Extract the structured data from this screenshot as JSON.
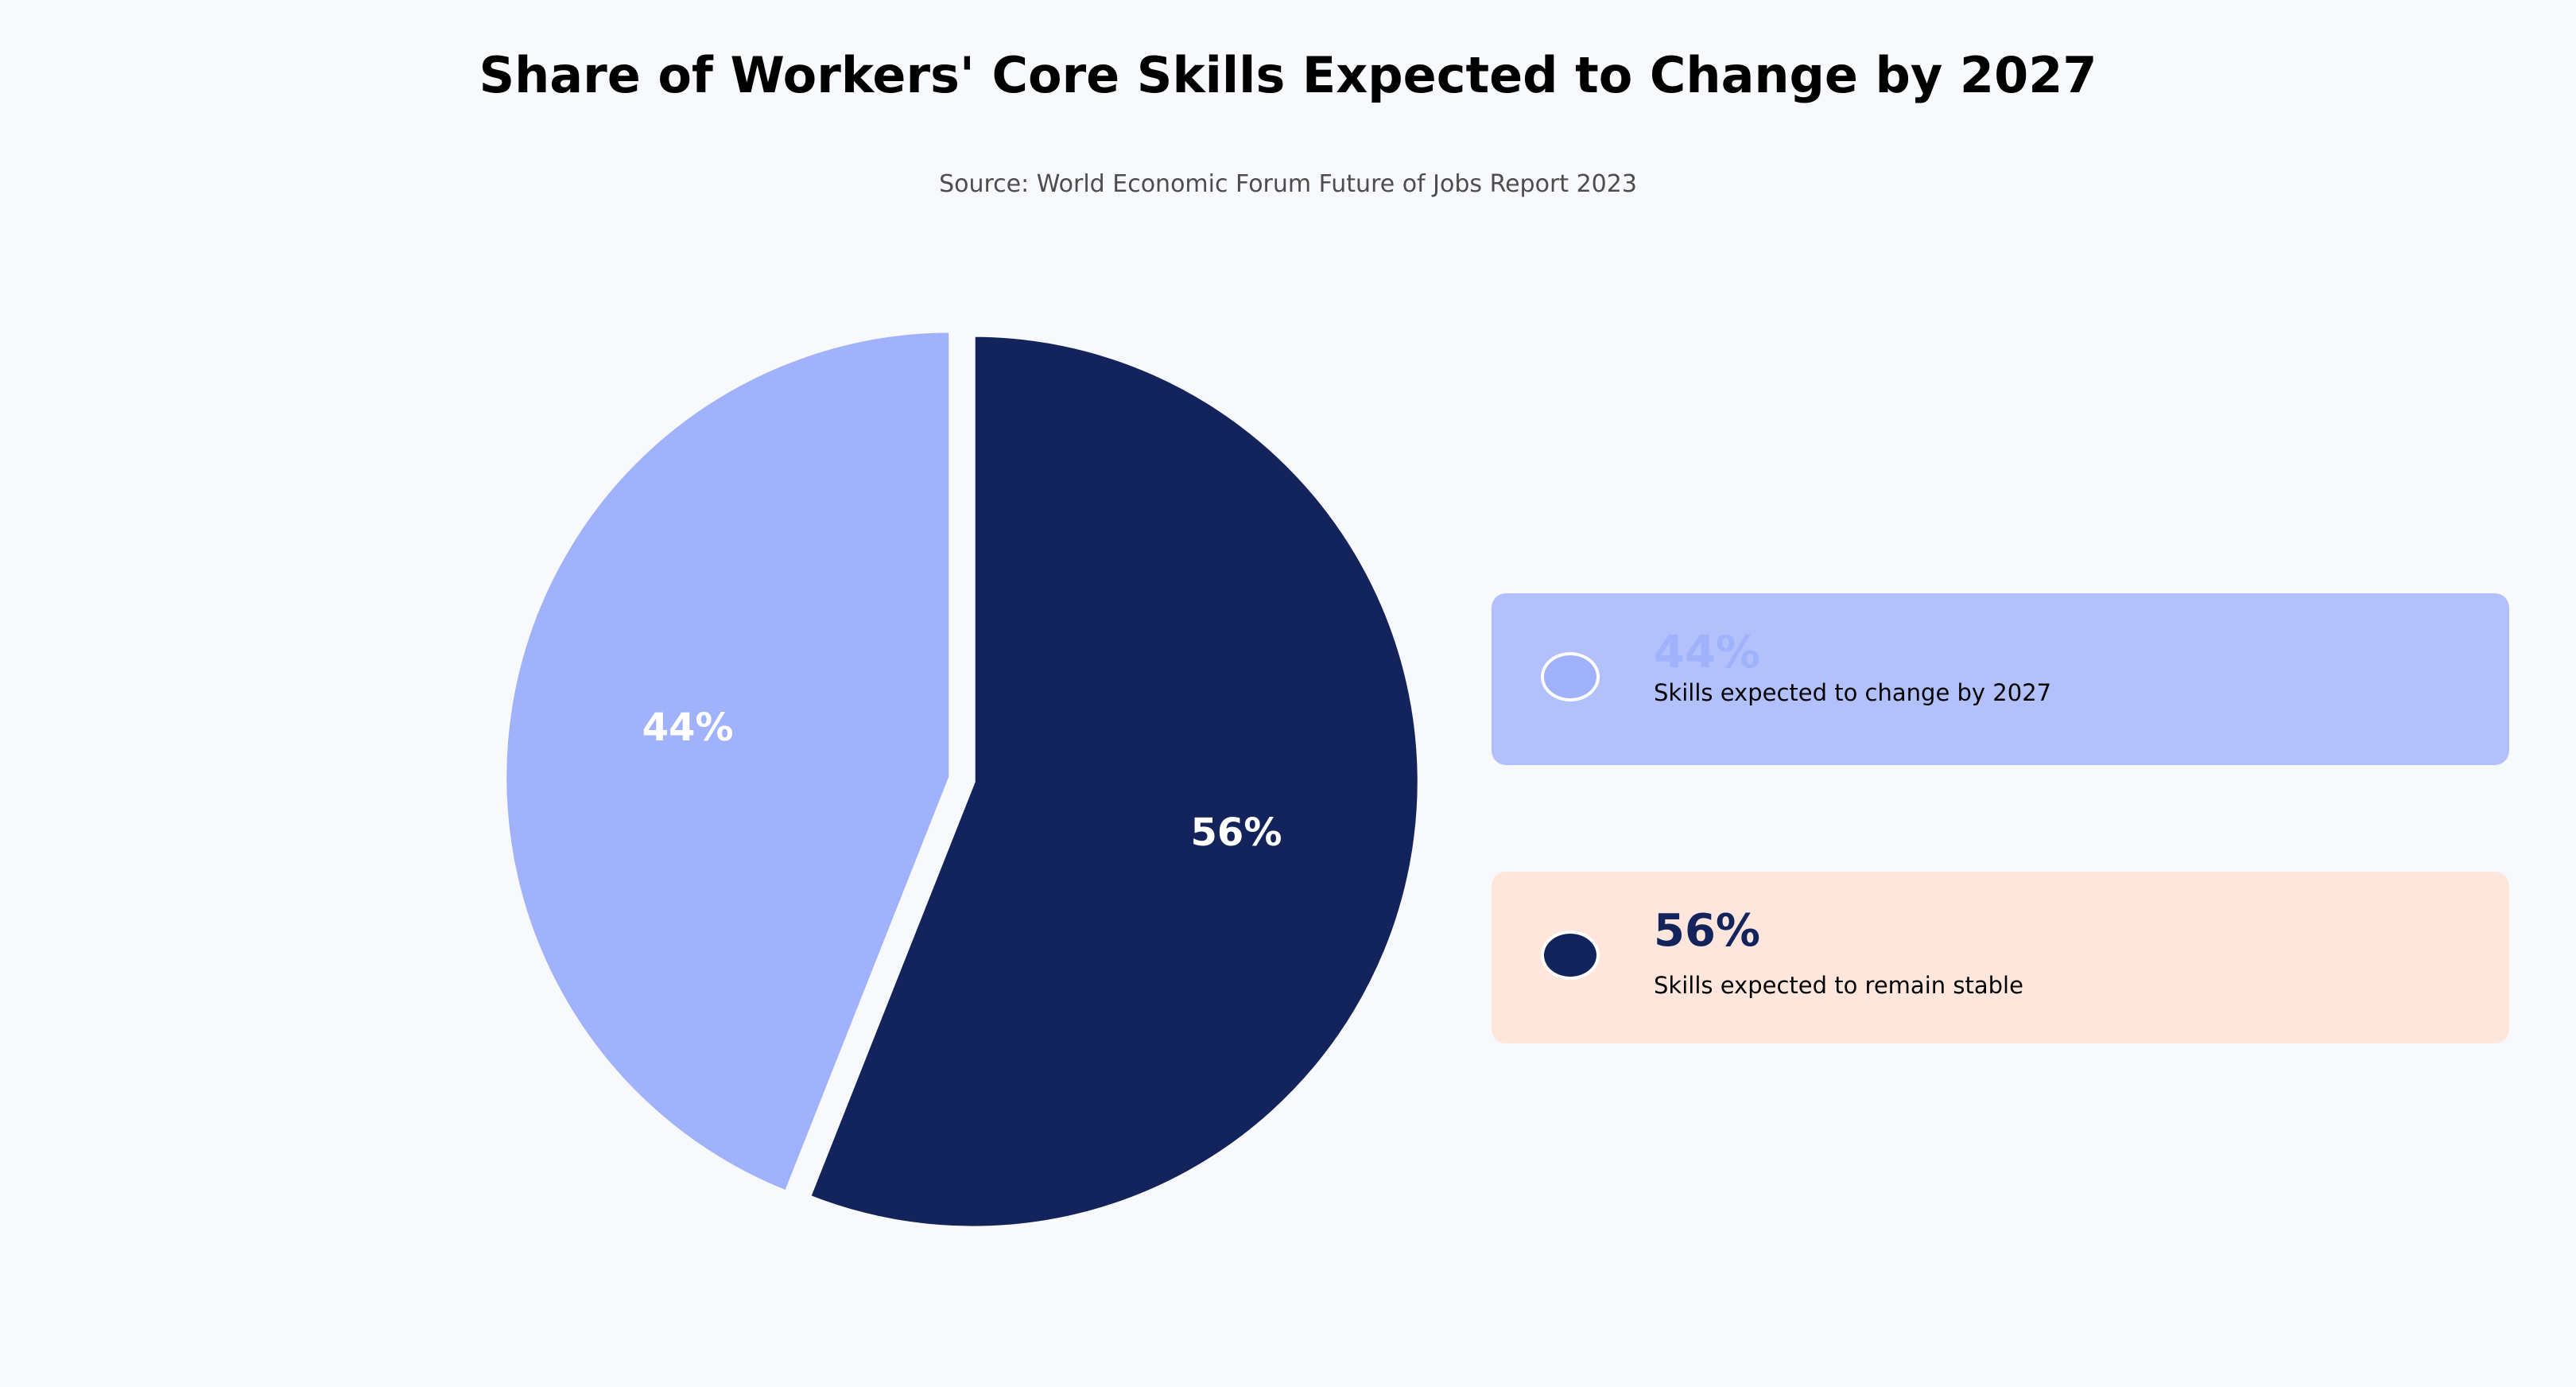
{
  "chart_data": {
    "type": "pie",
    "title": "Share of Workers' Core Skills Expected to Change by 2027",
    "subtitle": "Source: World Economic Forum Future of Jobs Report 2023",
    "slices": [
      {
        "label": "Skills expected to change by 2027",
        "value": 44,
        "value_label": "44%",
        "color": "#a0b2fc"
      },
      {
        "label": "Skills expected to remain stable",
        "value": 56,
        "value_label": "56%",
        "color": "#13235b"
      }
    ],
    "start_angle": "12 o'clock",
    "direction": "counterclockwise first slice",
    "exploded": true,
    "legend": {
      "placement": "right",
      "style": "cards",
      "card_colors": [
        "#b2c0fc",
        "#fee6dc"
      ],
      "value_colors": [
        "#a0b2fc",
        "#13235b"
      ]
    }
  }
}
